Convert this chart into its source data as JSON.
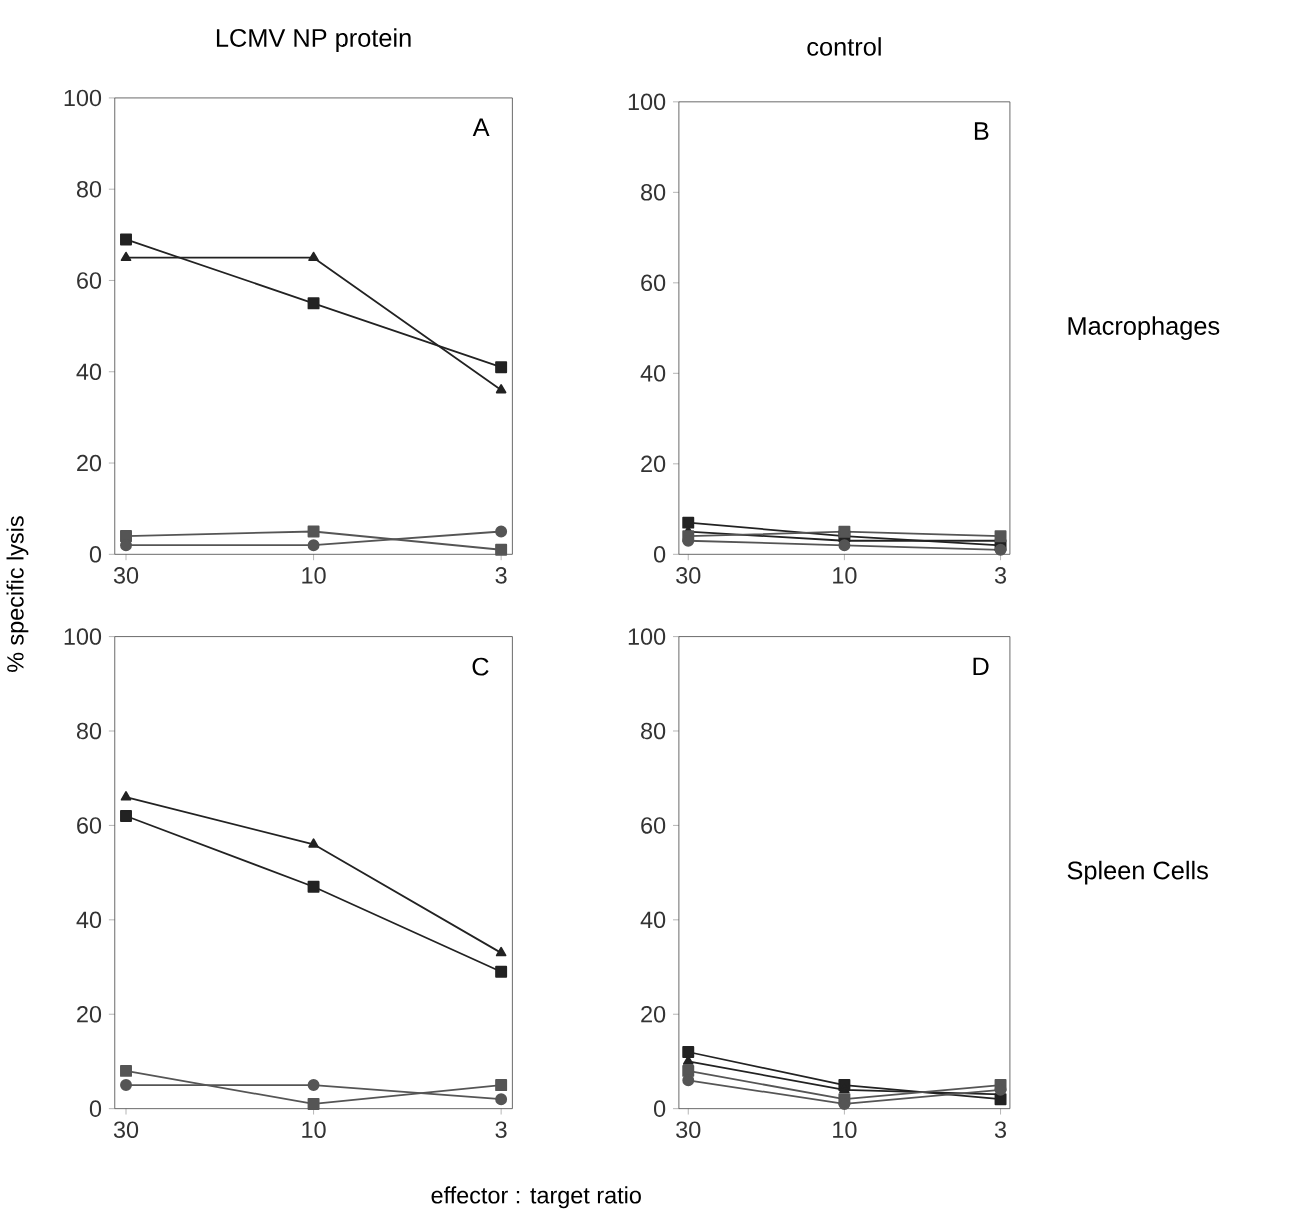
{
  "chart_data": [
    {
      "type": "line",
      "title": "LCMV NP protein",
      "categories": [
        "30",
        "10",
        "3"
      ],
      "ylim": [
        0,
        100
      ],
      "yticks": [
        0,
        20,
        40,
        60,
        80,
        100
      ],
      "grid": false,
      "annotations": [
        "A"
      ],
      "series": [
        {
          "color": "#222222",
          "marker": "square",
          "values": [
            69,
            55,
            41
          ]
        },
        {
          "color": "#222222",
          "marker": "triangle",
          "values": [
            65,
            65,
            36
          ]
        },
        {
          "color": "#555555",
          "marker": "square",
          "values": [
            4,
            5,
            1
          ]
        },
        {
          "color": "#555555",
          "marker": "circle",
          "values": [
            2,
            2,
            5
          ]
        }
      ]
    },
    {
      "type": "line",
      "title": "control",
      "categories": [
        "30",
        "10",
        "3"
      ],
      "ylim": [
        0,
        100
      ],
      "yticks": [
        0,
        20,
        40,
        60,
        80,
        100
      ],
      "grid": false,
      "annotations": [
        "B",
        "Macrophages"
      ],
      "series": [
        {
          "color": "#222222",
          "marker": "square",
          "values": [
            7,
            4,
            2
          ]
        },
        {
          "color": "#222222",
          "marker": "triangle",
          "values": [
            5,
            3,
            3
          ]
        },
        {
          "color": "#555555",
          "marker": "square",
          "values": [
            4,
            5,
            4
          ]
        },
        {
          "color": "#555555",
          "marker": "circle",
          "values": [
            3,
            2,
            1
          ]
        }
      ]
    },
    {
      "type": "line",
      "ylabel": "% specific lysis",
      "xlabel": "effector : target ratio",
      "categories": [
        "30",
        "10",
        "3"
      ],
      "ylim": [
        0,
        100
      ],
      "yticks": [
        0,
        20,
        40,
        60,
        80,
        100
      ],
      "grid": false,
      "annotations": [
        "C"
      ],
      "series": [
        {
          "color": "#222222",
          "marker": "square",
          "values": [
            62,
            47,
            29
          ]
        },
        {
          "color": "#222222",
          "marker": "triangle",
          "values": [
            66,
            56,
            33
          ]
        },
        {
          "color": "#555555",
          "marker": "square",
          "values": [
            8,
            1,
            5
          ]
        },
        {
          "color": "#555555",
          "marker": "circle",
          "values": [
            5,
            5,
            2
          ]
        }
      ]
    },
    {
      "type": "line",
      "categories": [
        "30",
        "10",
        "3"
      ],
      "ylim": [
        0,
        100
      ],
      "yticks": [
        0,
        20,
        40,
        60,
        80,
        100
      ],
      "grid": false,
      "annotations": [
        "D",
        "Spleen Cells"
      ],
      "series": [
        {
          "color": "#222222",
          "marker": "square",
          "values": [
            12,
            5,
            2
          ]
        },
        {
          "color": "#222222",
          "marker": "triangle",
          "values": [
            10,
            4,
            3
          ]
        },
        {
          "color": "#555555",
          "marker": "square",
          "values": [
            8,
            2,
            5
          ]
        },
        {
          "color": "#555555",
          "marker": "circle",
          "values": [
            6,
            1,
            4
          ]
        }
      ]
    }
  ]
}
